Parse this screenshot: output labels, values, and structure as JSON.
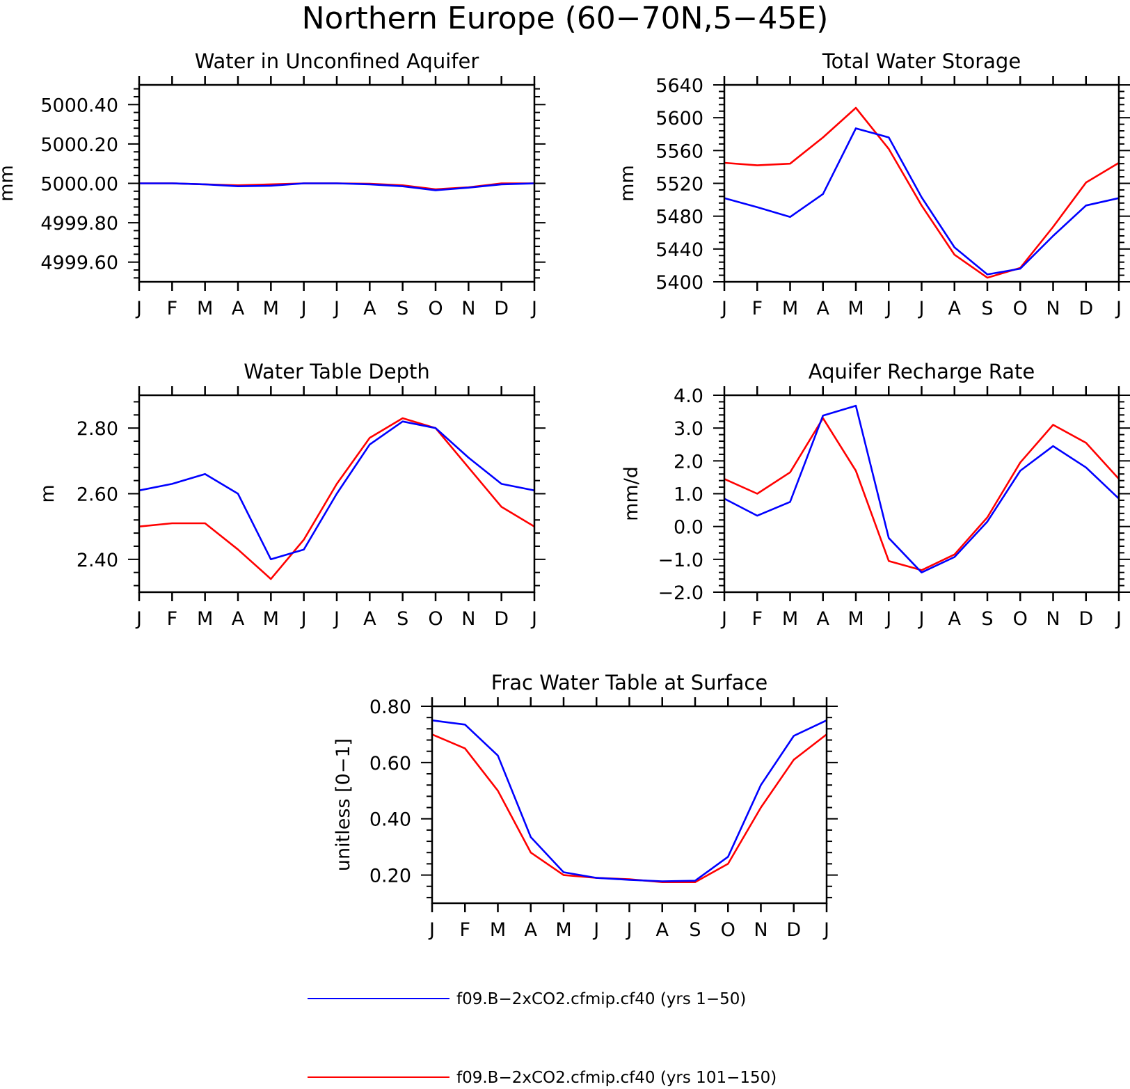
{
  "title": "Northern Europe (60−70N,5−45E)",
  "colors": {
    "run1": "#0000ff",
    "run2": "#ff0000",
    "axis": "#000000"
  },
  "legend": [
    {
      "label": "f09.B−2xCO2.cfmip.cf40 (yrs 1−50)",
      "color": "#0000ff"
    },
    {
      "label": "f09.B−2xCO2.cfmip.cf40 (yrs 101−150)",
      "color": "#ff0000"
    }
  ],
  "chart_data": [
    {
      "type": "line",
      "title": "Water in Unconfined Aquifer",
      "ylabel": "mm",
      "xlabel": "",
      "categories": [
        "J",
        "F",
        "M",
        "A",
        "M",
        "J",
        "J",
        "A",
        "S",
        "O",
        "N",
        "D",
        "J"
      ],
      "ylim": [
        4999.5,
        5000.5
      ],
      "yticks": [
        4999.6,
        4999.8,
        5000.0,
        5000.2,
        5000.4
      ],
      "ytick_labels": [
        "4999.60",
        "4999.80",
        "5000.00",
        "5000.20",
        "5000.40"
      ],
      "series": [
        {
          "color": "#ff0000",
          "values": [
            5000.0,
            5000.0,
            4999.995,
            4999.99,
            4999.995,
            5000.0,
            5000.0,
            4999.998,
            4999.99,
            4999.97,
            4999.98,
            5000.0,
            5000.0
          ]
        },
        {
          "color": "#0000ff",
          "values": [
            5000.0,
            5000.0,
            4999.995,
            4999.985,
            4999.988,
            5000.0,
            5000.0,
            4999.995,
            4999.985,
            4999.965,
            4999.978,
            4999.995,
            5000.0
          ]
        }
      ]
    },
    {
      "type": "line",
      "title": "Total Water Storage",
      "ylabel": "mm",
      "xlabel": "",
      "categories": [
        "J",
        "F",
        "M",
        "A",
        "M",
        "J",
        "J",
        "A",
        "S",
        "O",
        "N",
        "D",
        "J"
      ],
      "ylim": [
        5400,
        5640
      ],
      "yticks": [
        5400,
        5440,
        5480,
        5520,
        5560,
        5600,
        5640
      ],
      "ytick_labels": [
        "5400",
        "5440",
        "5480",
        "5520",
        "5560",
        "5600",
        "5640"
      ],
      "series": [
        {
          "color": "#ff0000",
          "values": [
            5545,
            5542,
            5544,
            5576,
            5612,
            5562,
            5493,
            5433,
            5405,
            5417,
            5467,
            5521,
            5545
          ]
        },
        {
          "color": "#0000ff",
          "values": [
            5502,
            5491,
            5479,
            5507,
            5587,
            5576,
            5503,
            5442,
            5409,
            5416,
            5456,
            5493,
            5502
          ]
        }
      ]
    },
    {
      "type": "line",
      "title": "Water Table Depth",
      "ylabel": "m",
      "xlabel": "",
      "categories": [
        "J",
        "F",
        "M",
        "A",
        "M",
        "J",
        "J",
        "A",
        "S",
        "O",
        "N",
        "D",
        "J"
      ],
      "ylim": [
        2.3,
        2.9
      ],
      "yticks": [
        2.4,
        2.6,
        2.8
      ],
      "ytick_labels": [
        "2.40",
        "2.60",
        "2.80"
      ],
      "series": [
        {
          "color": "#ff0000",
          "values": [
            2.5,
            2.51,
            2.51,
            2.43,
            2.34,
            2.46,
            2.63,
            2.77,
            2.83,
            2.8,
            2.68,
            2.56,
            2.5
          ]
        },
        {
          "color": "#0000ff",
          "values": [
            2.61,
            2.63,
            2.66,
            2.6,
            2.4,
            2.43,
            2.6,
            2.75,
            2.82,
            2.8,
            2.71,
            2.63,
            2.61
          ]
        }
      ]
    },
    {
      "type": "line",
      "title": "Aquifer Recharge Rate",
      "ylabel": "mm/d",
      "xlabel": "",
      "categories": [
        "J",
        "F",
        "M",
        "A",
        "M",
        "J",
        "J",
        "A",
        "S",
        "O",
        "N",
        "D",
        "J"
      ],
      "ylim": [
        -2.0,
        4.0
      ],
      "yticks": [
        -2.0,
        -1.0,
        0.0,
        1.0,
        2.0,
        3.0,
        4.0
      ],
      "ytick_labels": [
        "−2.0",
        "−1.0",
        "0.0",
        "1.0",
        "2.0",
        "3.0",
        "4.0"
      ],
      "series": [
        {
          "color": "#ff0000",
          "values": [
            1.45,
            1.0,
            1.65,
            3.3,
            1.7,
            -1.05,
            -1.33,
            -0.85,
            0.28,
            1.95,
            3.1,
            2.55,
            1.45
          ]
        },
        {
          "color": "#0000ff",
          "values": [
            0.85,
            0.33,
            0.75,
            3.38,
            3.68,
            -0.35,
            -1.4,
            -0.93,
            0.15,
            1.7,
            2.45,
            1.8,
            0.85
          ]
        }
      ]
    },
    {
      "type": "line",
      "title": "Frac Water Table at Surface",
      "ylabel": "unitless [0−1]",
      "xlabel": "",
      "categories": [
        "J",
        "F",
        "M",
        "A",
        "M",
        "J",
        "J",
        "A",
        "S",
        "O",
        "N",
        "D",
        "J"
      ],
      "ylim": [
        0.1,
        0.8
      ],
      "yticks": [
        0.2,
        0.4,
        0.6,
        0.8
      ],
      "ytick_labels": [
        "0.20",
        "0.40",
        "0.60",
        "0.80"
      ],
      "series": [
        {
          "color": "#ff0000",
          "values": [
            0.7,
            0.65,
            0.5,
            0.28,
            0.2,
            0.19,
            0.185,
            0.175,
            0.175,
            0.24,
            0.44,
            0.61,
            0.7
          ]
        },
        {
          "color": "#0000ff",
          "values": [
            0.75,
            0.735,
            0.625,
            0.335,
            0.21,
            0.19,
            0.183,
            0.178,
            0.18,
            0.265,
            0.52,
            0.695,
            0.75
          ]
        }
      ]
    }
  ]
}
